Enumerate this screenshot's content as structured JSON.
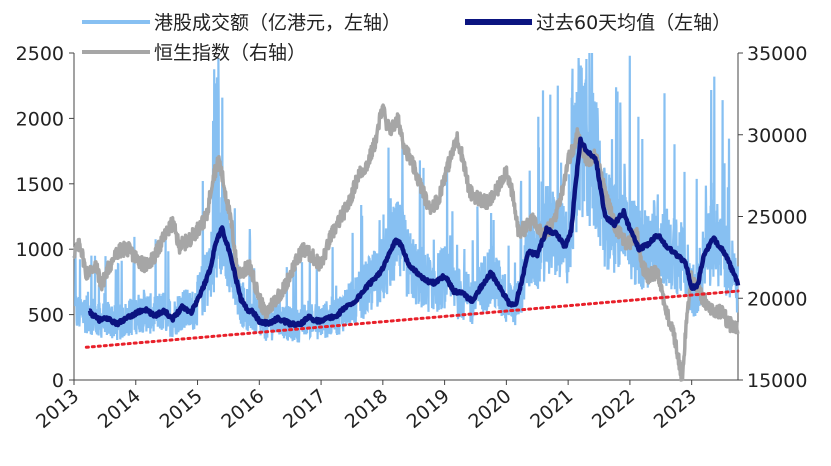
{
  "chart_data": {
    "type": "line",
    "x_axis": {
      "ticks": [
        "2013",
        "2014",
        "2015",
        "2016",
        "2017",
        "2018",
        "2019",
        "2020",
        "2021",
        "2022",
        "2023"
      ]
    },
    "y_left": {
      "range": [
        0,
        2500
      ],
      "ticks": [
        0,
        500,
        1000,
        1500,
        2000,
        2500
      ]
    },
    "y_right": {
      "range": [
        15000,
        35000
      ],
      "ticks": [
        15000,
        20000,
        25000,
        30000,
        35000
      ]
    },
    "legend": {
      "placement": "top",
      "items": [
        {
          "id": "turnover",
          "label": "港股成交额（亿港元，左轴）",
          "color": "#87c0f2"
        },
        {
          "id": "ma60",
          "label": "过去60天均值（左轴）",
          "color": "#0b1480"
        },
        {
          "id": "hsi",
          "label": "恒生指数（右轴）",
          "color": "#a6a6a6"
        }
      ]
    },
    "series": [
      {
        "id": "ma60",
        "name": "过去60天均值（左轴）",
        "axis": "left",
        "color": "#0b1480",
        "x": [
          2013.25,
          2013.4,
          2013.55,
          2013.7,
          2013.85,
          2014.0,
          2014.15,
          2014.3,
          2014.45,
          2014.6,
          2014.75,
          2014.9,
          2015.05,
          2015.2,
          2015.3,
          2015.4,
          2015.5,
          2015.6,
          2015.7,
          2015.8,
          2015.9,
          2016.0,
          2016.15,
          2016.3,
          2016.5,
          2016.65,
          2016.8,
          2016.95,
          2017.1,
          2017.25,
          2017.4,
          2017.55,
          2017.7,
          2017.85,
          2018.0,
          2018.1,
          2018.2,
          2018.3,
          2018.4,
          2018.55,
          2018.7,
          2018.85,
          2019.0,
          2019.15,
          2019.3,
          2019.45,
          2019.6,
          2019.75,
          2019.9,
          2020.05,
          2020.15,
          2020.25,
          2020.35,
          2020.5,
          2020.65,
          2020.8,
          2020.95,
          2021.05,
          2021.12,
          2021.2,
          2021.3,
          2021.45,
          2021.6,
          2021.75,
          2021.9,
          2022.0,
          2022.15,
          2022.3,
          2022.45,
          2022.6,
          2022.75,
          2022.9,
          2023.0,
          2023.1,
          2023.2,
          2023.35,
          2023.5,
          2023.62,
          2023.75
        ],
        "y": [
          520,
          460,
          470,
          430,
          470,
          510,
          540,
          490,
          530,
          470,
          560,
          520,
          660,
          840,
          1060,
          1160,
          1000,
          820,
          620,
          540,
          520,
          450,
          430,
          470,
          430,
          420,
          480,
          450,
          470,
          490,
          560,
          600,
          690,
          770,
          850,
          960,
          1060,
          1040,
          900,
          820,
          760,
          740,
          800,
          680,
          660,
          600,
          720,
          820,
          700,
          580,
          580,
          760,
          980,
          960,
          1150,
          1120,
          1020,
          1140,
          1500,
          1830,
          1750,
          1680,
          1250,
          1190,
          1290,
          1150,
          1000,
          1040,
          1110,
          1020,
          960,
          900,
          700,
          730,
          960,
          1080,
          1000,
          880,
          730
        ]
      },
      {
        "id": "hsi",
        "name": "恒生指数（右轴）",
        "axis": "right",
        "color": "#a6a6a6",
        "x": [
          2013.0,
          2013.1,
          2013.2,
          2013.35,
          2013.45,
          2013.55,
          2013.7,
          2013.85,
          2014.0,
          2014.15,
          2014.3,
          2014.45,
          2014.6,
          2014.7,
          2014.85,
          2015.0,
          2015.15,
          2015.25,
          2015.35,
          2015.45,
          2015.55,
          2015.65,
          2015.75,
          2015.85,
          2016.0,
          2016.1,
          2016.25,
          2016.4,
          2016.55,
          2016.7,
          2016.85,
          2017.0,
          2017.15,
          2017.3,
          2017.45,
          2017.6,
          2017.75,
          2017.9,
          2018.0,
          2018.05,
          2018.15,
          2018.25,
          2018.35,
          2018.5,
          2018.6,
          2018.75,
          2018.9,
          2019.0,
          2019.1,
          2019.2,
          2019.3,
          2019.4,
          2019.55,
          2019.7,
          2019.85,
          2020.0,
          2020.1,
          2020.2,
          2020.3,
          2020.45,
          2020.6,
          2020.75,
          2020.9,
          2021.0,
          2021.1,
          2021.15,
          2021.3,
          2021.45,
          2021.6,
          2021.75,
          2021.9,
          2022.0,
          2022.1,
          2022.2,
          2022.3,
          2022.45,
          2022.6,
          2022.7,
          2022.8,
          2022.85,
          2022.9,
          2023.0,
          2023.1,
          2023.2,
          2023.35,
          2023.5,
          2023.6,
          2023.7,
          2023.75
        ],
        "y": [
          22800,
          23300,
          21500,
          22000,
          20800,
          21800,
          22800,
          23100,
          22500,
          22000,
          22500,
          23700,
          24600,
          23200,
          23500,
          24200,
          25000,
          27500,
          28400,
          26500,
          24500,
          21500,
          21700,
          21900,
          20000,
          19000,
          19900,
          20600,
          21900,
          23000,
          22600,
          22000,
          23700,
          24800,
          25800,
          27500,
          28200,
          29800,
          32000,
          30500,
          30400,
          30900,
          29300,
          28000,
          27000,
          25500,
          26000,
          27500,
          28600,
          29800,
          28500,
          26500,
          26100,
          25800,
          26600,
          27900,
          26300,
          24000,
          24300,
          24800,
          23900,
          24500,
          26500,
          28500,
          29200,
          30000,
          28500,
          28700,
          26500,
          24500,
          23500,
          23400,
          24200,
          22000,
          21300,
          21700,
          19000,
          18000,
          16000,
          15000,
          18000,
          21500,
          20500,
          19900,
          19100,
          19200,
          18400,
          18400,
          18200
        ]
      },
      {
        "id": "trend",
        "name": "",
        "axis": "left",
        "color": "#e8202a",
        "style": "dotted",
        "x": [
          2013.2,
          2023.75
        ],
        "y": [
          250,
          680
        ]
      }
    ]
  }
}
